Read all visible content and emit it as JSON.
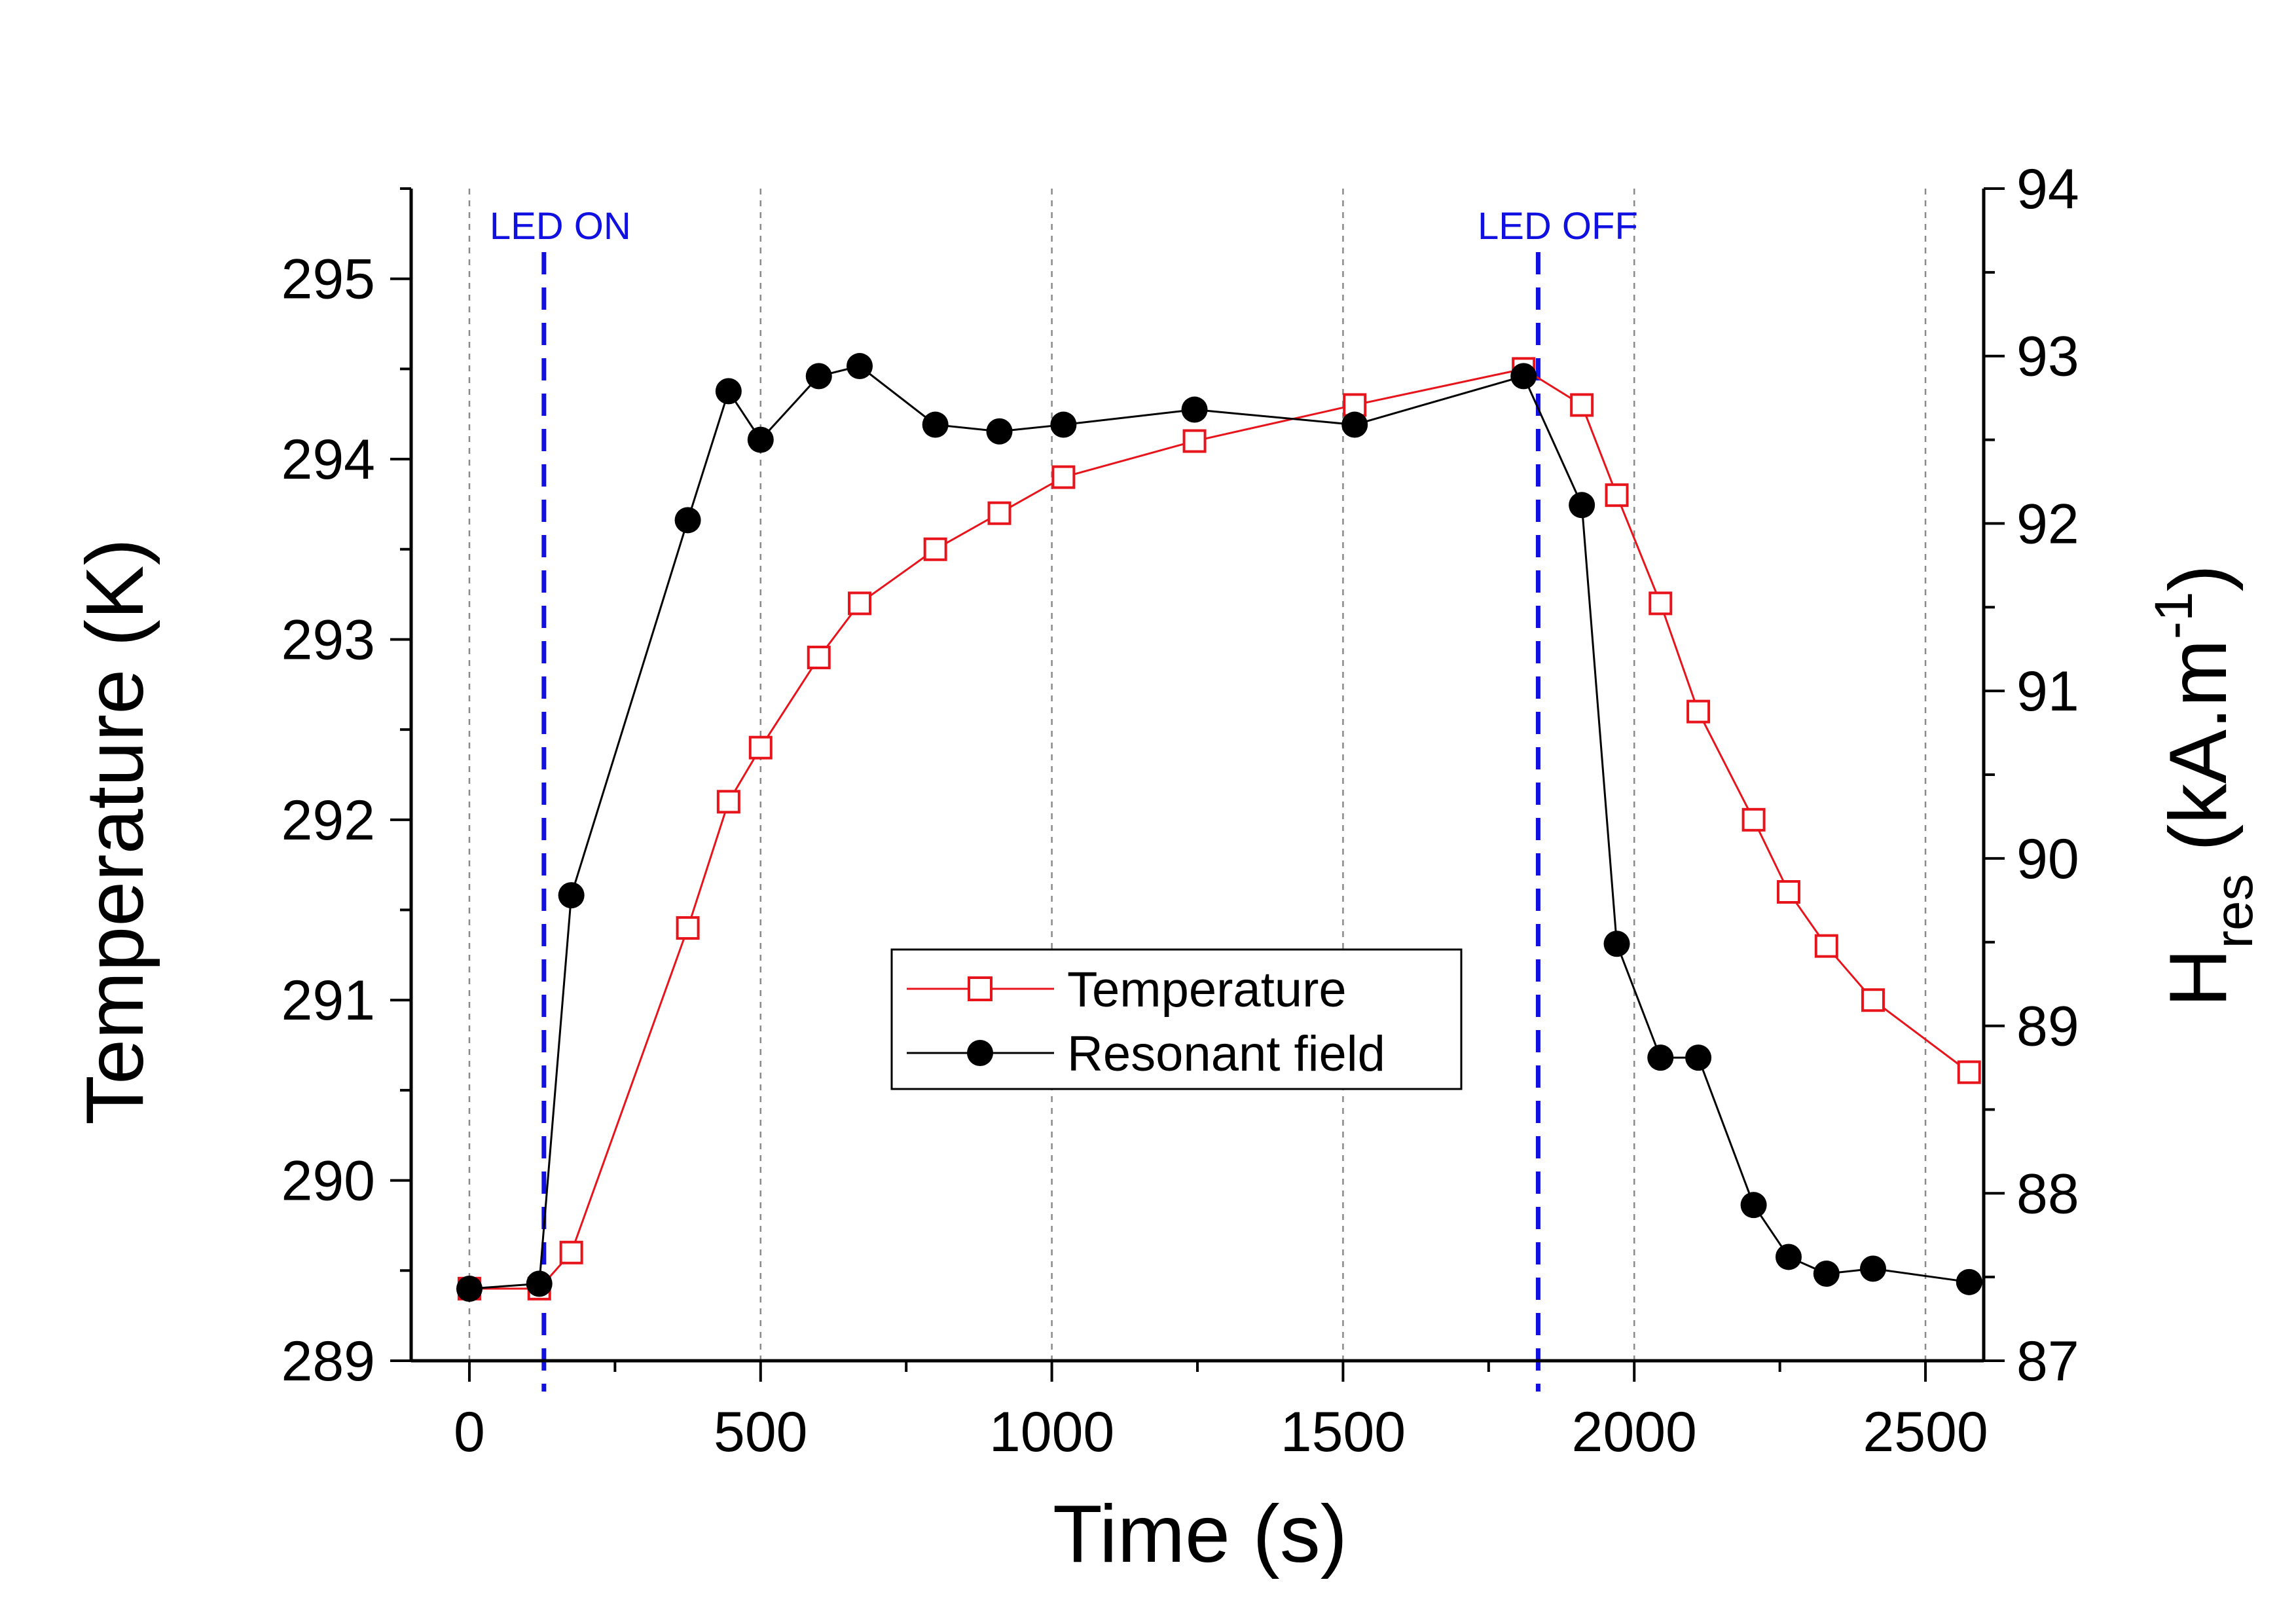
{
  "chart_data": {
    "type": "line",
    "xlabel": "Time (s)",
    "ylabel_left": "Temperature (K)",
    "ylabel_right_main": "H",
    "ylabel_right_sub": "res",
    "ylabel_right_unit": "(kA.m",
    "ylabel_right_sup": "-1",
    "ylabel_right_close": ")",
    "xlim": [
      -100,
      2600
    ],
    "ylim_left": [
      289,
      295.5
    ],
    "ylim_right": [
      87,
      94
    ],
    "x_ticks": [
      0,
      500,
      1000,
      1500,
      2000,
      2500
    ],
    "y_left_ticks": [
      289,
      290,
      291,
      292,
      293,
      294,
      295
    ],
    "y_right_ticks": [
      87,
      88,
      89,
      90,
      91,
      92,
      93,
      94
    ],
    "vertical_grid": [
      0,
      500,
      1000,
      1500,
      2000,
      2500
    ],
    "series": [
      {
        "name": "Temperature",
        "axis": "left",
        "color": "#e8141b",
        "marker": "open-square",
        "x": [
          0,
          120,
          175,
          375,
          445,
          500,
          600,
          670,
          800,
          910,
          1020,
          1245,
          1520,
          1810,
          1910,
          1970,
          2045,
          2110,
          2205,
          2265,
          2330,
          2410,
          2575
        ],
        "y": [
          289.4,
          289.4,
          289.6,
          291.4,
          292.1,
          292.4,
          292.9,
          293.2,
          293.5,
          293.7,
          293.9,
          294.1,
          294.3,
          294.5,
          294.3,
          293.8,
          293.2,
          292.6,
          292.0,
          291.6,
          291.3,
          291.0,
          290.6
        ]
      },
      {
        "name": "Resonant field",
        "axis": "right",
        "color": "#000000",
        "marker": "filled-circle",
        "x": [
          0,
          120,
          175,
          375,
          445,
          500,
          600,
          670,
          800,
          910,
          1020,
          1245,
          1520,
          1810,
          1910,
          1970,
          2045,
          2110,
          2205,
          2265,
          2330,
          2410,
          2575
        ],
        "y": [
          87.43,
          87.46,
          89.78,
          92.02,
          92.79,
          92.5,
          92.88,
          92.94,
          92.59,
          92.55,
          92.59,
          92.68,
          92.59,
          92.88,
          92.11,
          89.49,
          88.81,
          88.81,
          87.93,
          87.62,
          87.52,
          87.55,
          87.47
        ]
      }
    ],
    "annotations": [
      {
        "text": "LED ON",
        "x": 128,
        "line_color": "#1010e0"
      },
      {
        "text": "LED OFF",
        "x": 1835,
        "line_color": "#1010e0"
      }
    ],
    "legend": [
      "Temperature",
      "Resonant field"
    ]
  }
}
